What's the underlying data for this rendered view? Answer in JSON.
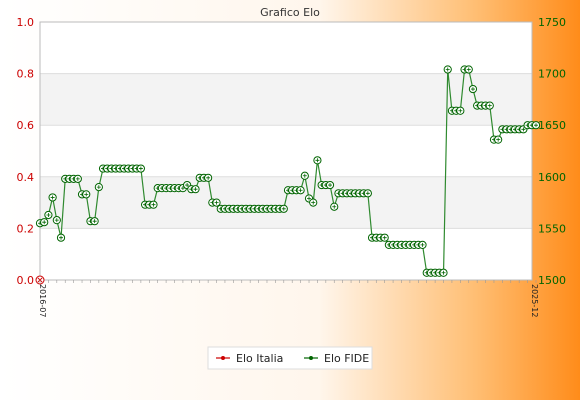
{
  "chart_data": {
    "type": "line",
    "title": "Grafico Elo",
    "left_axis": {
      "ylim": [
        0,
        1
      ],
      "ticks": [
        "0.0",
        "0.2",
        "0.4",
        "0.6",
        "0.8",
        "1.0"
      ],
      "color": "#cc0000"
    },
    "right_axis": {
      "ylim": [
        1500,
        1750
      ],
      "ticks": [
        "1500",
        "1550",
        "1600",
        "1650",
        "1700",
        "1750"
      ],
      "color": "#006400"
    },
    "grid": "horizontal-bands",
    "legend_placement": "bottom-center",
    "legend": [
      {
        "name": "Elo Italia",
        "color": "#cc0000"
      },
      {
        "name": "Elo FIDE",
        "color": "#006400"
      }
    ],
    "x_first_label": "2016-07",
    "x_last_label": "2025-12",
    "series": [
      {
        "name": "Elo Italia",
        "axis": "left",
        "values": [
          0
        ]
      },
      {
        "name": "Elo FIDE",
        "axis": "right",
        "values": [
          1555,
          1556,
          1563,
          1580,
          1558,
          1541,
          1598,
          1598,
          1598,
          1598,
          1583,
          1583,
          1557,
          1557,
          1590,
          1608,
          1608,
          1608,
          1608,
          1608,
          1608,
          1608,
          1608,
          1608,
          1608,
          1573,
          1573,
          1573,
          1589,
          1589,
          1589,
          1589,
          1589,
          1589,
          1589,
          1592,
          1588,
          1588,
          1599,
          1599,
          1599,
          1575,
          1575,
          1569,
          1569,
          1569,
          1569,
          1569,
          1569,
          1569,
          1569,
          1569,
          1569,
          1569,
          1569,
          1569,
          1569,
          1569,
          1569,
          1587,
          1587,
          1587,
          1587,
          1601,
          1579,
          1575,
          1616,
          1592,
          1592,
          1592,
          1571,
          1584,
          1584,
          1584,
          1584,
          1584,
          1584,
          1584,
          1584,
          1541,
          1541,
          1541,
          1541,
          1534,
          1534,
          1534,
          1534,
          1534,
          1534,
          1534,
          1534,
          1534,
          1507,
          1507,
          1507,
          1507,
          1507,
          1704,
          1664,
          1664,
          1664,
          1704,
          1704,
          1685,
          1669,
          1669,
          1669,
          1669,
          1636,
          1636,
          1646,
          1646,
          1646,
          1646,
          1646,
          1646,
          1650,
          1650,
          1650
        ]
      }
    ]
  }
}
